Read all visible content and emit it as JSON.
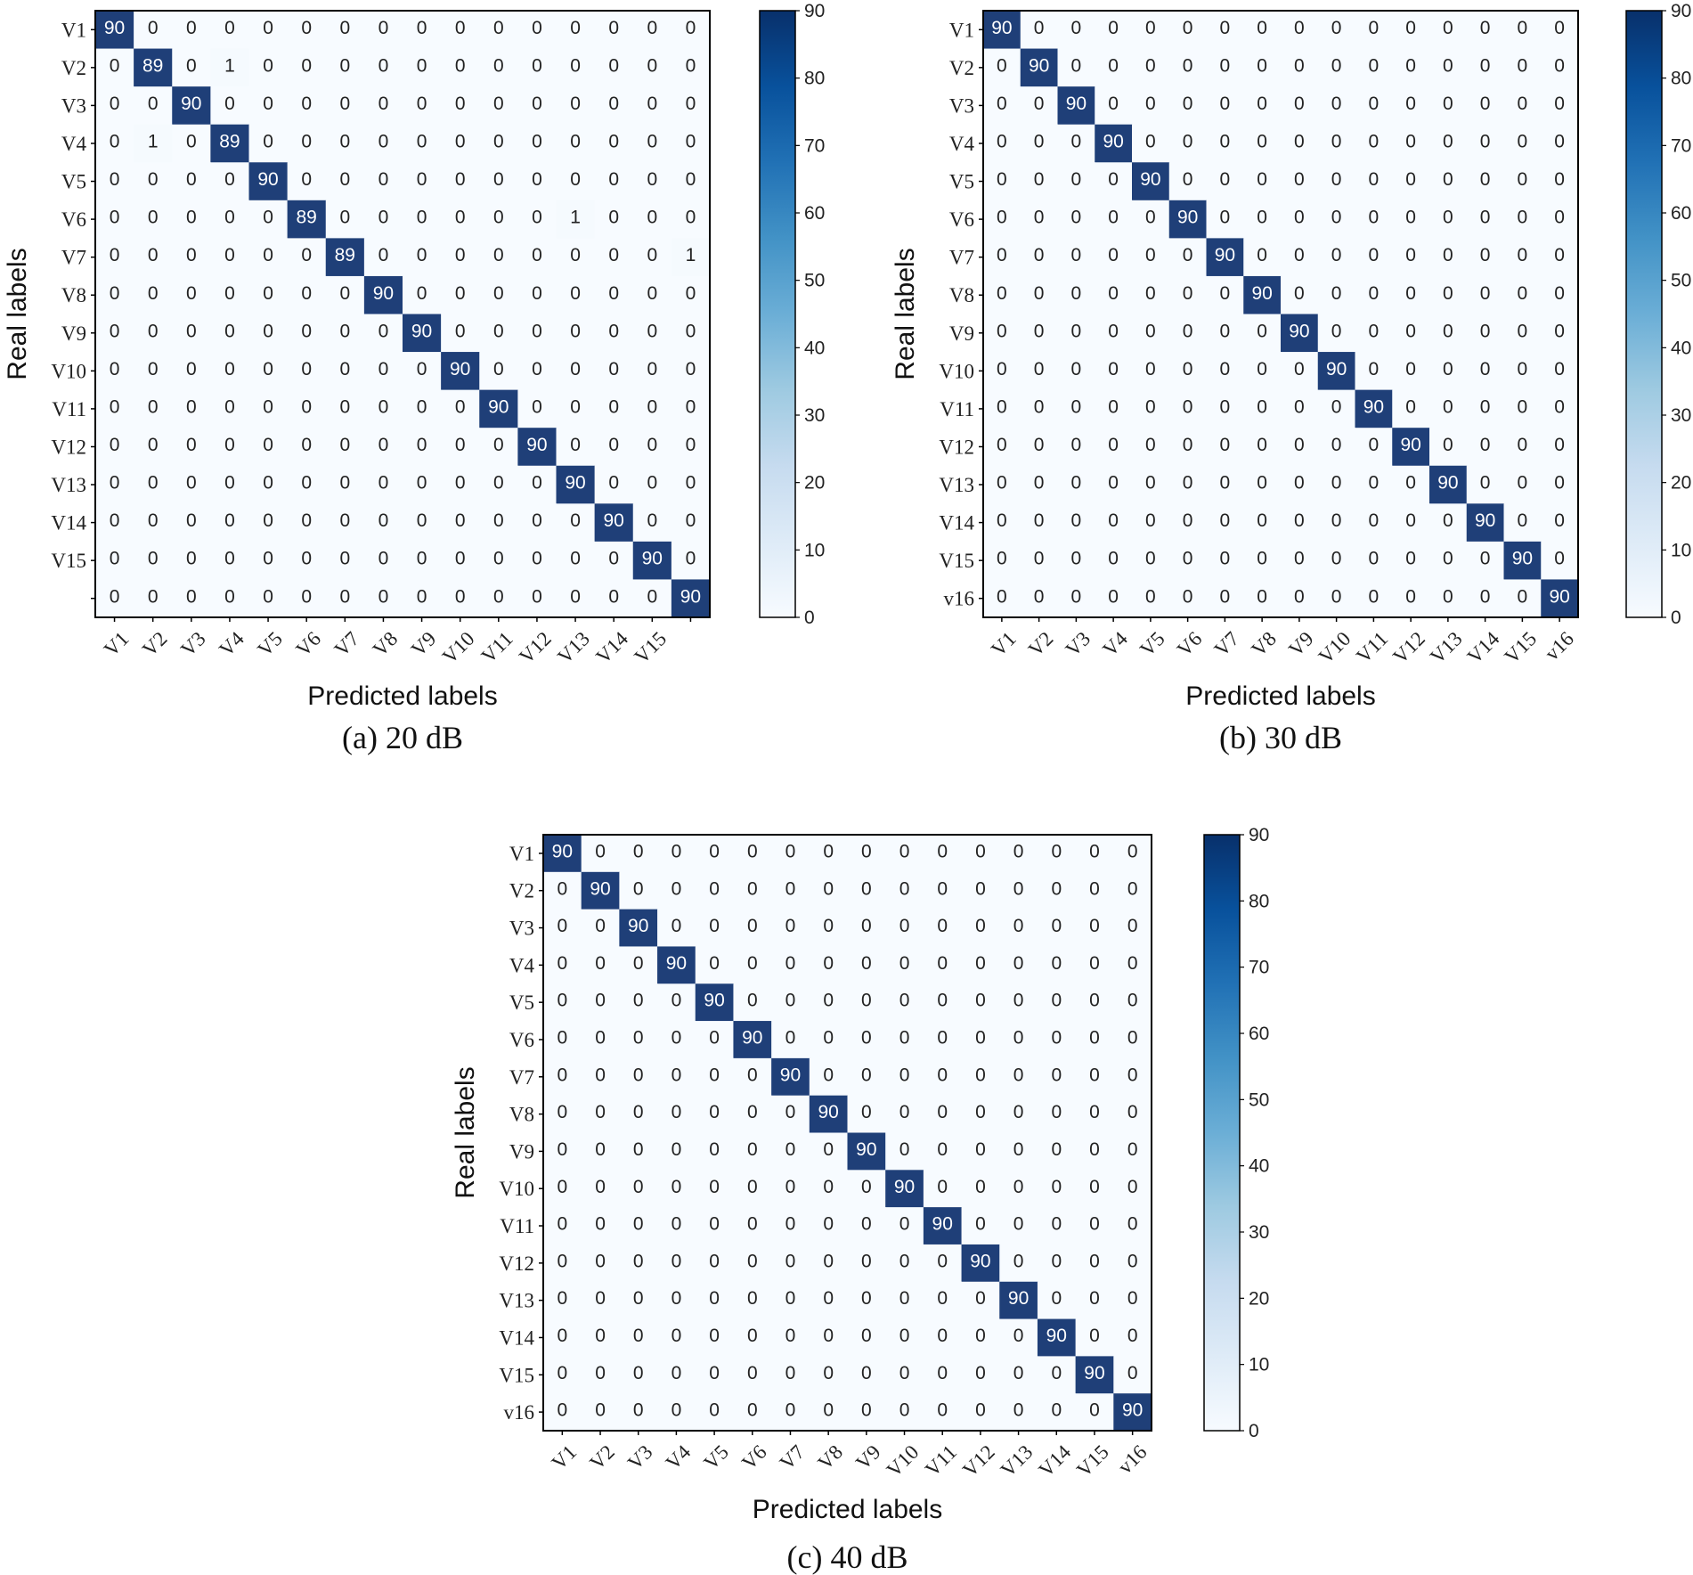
{
  "chart_data": [
    {
      "type": "heatmap",
      "caption": "(a) 20 dB",
      "xlabel": "Predicted labels",
      "ylabel": "Real labels",
      "x_ticks": [
        "V1",
        "V2",
        "V3",
        "V4",
        "V5",
        "V6",
        "V7",
        "V8",
        "V9",
        "V10",
        "V11",
        "V12",
        "V13",
        "V14",
        "V15",
        ""
      ],
      "y_ticks": [
        "V1",
        "V2",
        "V3",
        "V4",
        "V5",
        "V6",
        "V7",
        "V8",
        "V9",
        "V10",
        "V11",
        "V12",
        "V13",
        "V14",
        "V15",
        ""
      ],
      "colorbar": {
        "min": 0,
        "max": 90,
        "ticks": [
          "0",
          "10",
          "20",
          "30",
          "40",
          "50",
          "60",
          "70",
          "80",
          "90"
        ]
      },
      "matrix": [
        [
          90,
          0,
          0,
          0,
          0,
          0,
          0,
          0,
          0,
          0,
          0,
          0,
          0,
          0,
          0,
          0
        ],
        [
          0,
          89,
          0,
          1,
          0,
          0,
          0,
          0,
          0,
          0,
          0,
          0,
          0,
          0,
          0,
          0
        ],
        [
          0,
          0,
          90,
          0,
          0,
          0,
          0,
          0,
          0,
          0,
          0,
          0,
          0,
          0,
          0,
          0
        ],
        [
          0,
          1,
          0,
          89,
          0,
          0,
          0,
          0,
          0,
          0,
          0,
          0,
          0,
          0,
          0,
          0
        ],
        [
          0,
          0,
          0,
          0,
          90,
          0,
          0,
          0,
          0,
          0,
          0,
          0,
          0,
          0,
          0,
          0
        ],
        [
          0,
          0,
          0,
          0,
          0,
          89,
          0,
          0,
          0,
          0,
          0,
          0,
          1,
          0,
          0,
          0
        ],
        [
          0,
          0,
          0,
          0,
          0,
          0,
          89,
          0,
          0,
          0,
          0,
          0,
          0,
          0,
          0,
          1
        ],
        [
          0,
          0,
          0,
          0,
          0,
          0,
          0,
          90,
          0,
          0,
          0,
          0,
          0,
          0,
          0,
          0
        ],
        [
          0,
          0,
          0,
          0,
          0,
          0,
          0,
          0,
          90,
          0,
          0,
          0,
          0,
          0,
          0,
          0
        ],
        [
          0,
          0,
          0,
          0,
          0,
          0,
          0,
          0,
          0,
          90,
          0,
          0,
          0,
          0,
          0,
          0
        ],
        [
          0,
          0,
          0,
          0,
          0,
          0,
          0,
          0,
          0,
          0,
          90,
          0,
          0,
          0,
          0,
          0
        ],
        [
          0,
          0,
          0,
          0,
          0,
          0,
          0,
          0,
          0,
          0,
          0,
          90,
          0,
          0,
          0,
          0
        ],
        [
          0,
          0,
          0,
          0,
          0,
          0,
          0,
          0,
          0,
          0,
          0,
          0,
          90,
          0,
          0,
          0
        ],
        [
          0,
          0,
          0,
          0,
          0,
          0,
          0,
          0,
          0,
          0,
          0,
          0,
          0,
          90,
          0,
          0
        ],
        [
          0,
          0,
          0,
          0,
          0,
          0,
          0,
          0,
          0,
          0,
          0,
          0,
          0,
          0,
          90,
          0
        ],
        [
          0,
          0,
          0,
          0,
          0,
          0,
          0,
          0,
          0,
          0,
          0,
          0,
          0,
          0,
          0,
          90
        ]
      ]
    },
    {
      "type": "heatmap",
      "caption": "(b) 30 dB",
      "xlabel": "Predicted labels",
      "ylabel": "Real labels",
      "x_ticks": [
        "V1",
        "V2",
        "V3",
        "V4",
        "V5",
        "V6",
        "V7",
        "V8",
        "V9",
        "V10",
        "V11",
        "V12",
        "V13",
        "V14",
        "V15",
        "v16"
      ],
      "y_ticks": [
        "V1",
        "V2",
        "V3",
        "V4",
        "V5",
        "V6",
        "V7",
        "V8",
        "V9",
        "V10",
        "V11",
        "V12",
        "V13",
        "V14",
        "V15",
        "v16"
      ],
      "colorbar": {
        "min": 0,
        "max": 90,
        "ticks": [
          "0",
          "10",
          "20",
          "30",
          "40",
          "50",
          "60",
          "70",
          "80",
          "90"
        ]
      },
      "matrix": [
        [
          90,
          0,
          0,
          0,
          0,
          0,
          0,
          0,
          0,
          0,
          0,
          0,
          0,
          0,
          0,
          0
        ],
        [
          0,
          90,
          0,
          0,
          0,
          0,
          0,
          0,
          0,
          0,
          0,
          0,
          0,
          0,
          0,
          0
        ],
        [
          0,
          0,
          90,
          0,
          0,
          0,
          0,
          0,
          0,
          0,
          0,
          0,
          0,
          0,
          0,
          0
        ],
        [
          0,
          0,
          0,
          90,
          0,
          0,
          0,
          0,
          0,
          0,
          0,
          0,
          0,
          0,
          0,
          0
        ],
        [
          0,
          0,
          0,
          0,
          90,
          0,
          0,
          0,
          0,
          0,
          0,
          0,
          0,
          0,
          0,
          0
        ],
        [
          0,
          0,
          0,
          0,
          0,
          90,
          0,
          0,
          0,
          0,
          0,
          0,
          0,
          0,
          0,
          0
        ],
        [
          0,
          0,
          0,
          0,
          0,
          0,
          90,
          0,
          0,
          0,
          0,
          0,
          0,
          0,
          0,
          0
        ],
        [
          0,
          0,
          0,
          0,
          0,
          0,
          0,
          90,
          0,
          0,
          0,
          0,
          0,
          0,
          0,
          0
        ],
        [
          0,
          0,
          0,
          0,
          0,
          0,
          0,
          0,
          90,
          0,
          0,
          0,
          0,
          0,
          0,
          0
        ],
        [
          0,
          0,
          0,
          0,
          0,
          0,
          0,
          0,
          0,
          90,
          0,
          0,
          0,
          0,
          0,
          0
        ],
        [
          0,
          0,
          0,
          0,
          0,
          0,
          0,
          0,
          0,
          0,
          90,
          0,
          0,
          0,
          0,
          0
        ],
        [
          0,
          0,
          0,
          0,
          0,
          0,
          0,
          0,
          0,
          0,
          0,
          90,
          0,
          0,
          0,
          0
        ],
        [
          0,
          0,
          0,
          0,
          0,
          0,
          0,
          0,
          0,
          0,
          0,
          0,
          90,
          0,
          0,
          0
        ],
        [
          0,
          0,
          0,
          0,
          0,
          0,
          0,
          0,
          0,
          0,
          0,
          0,
          0,
          90,
          0,
          0
        ],
        [
          0,
          0,
          0,
          0,
          0,
          0,
          0,
          0,
          0,
          0,
          0,
          0,
          0,
          0,
          90,
          0
        ],
        [
          0,
          0,
          0,
          0,
          0,
          0,
          0,
          0,
          0,
          0,
          0,
          0,
          0,
          0,
          0,
          90
        ]
      ]
    },
    {
      "type": "heatmap",
      "caption": "(c) 40 dB",
      "xlabel": "Predicted labels",
      "ylabel": "Real labels",
      "x_ticks": [
        "V1",
        "V2",
        "V3",
        "V4",
        "V5",
        "V6",
        "V7",
        "V8",
        "V9",
        "V10",
        "V11",
        "V12",
        "V13",
        "V14",
        "V15",
        "v16"
      ],
      "y_ticks": [
        "V1",
        "V2",
        "V3",
        "V4",
        "V5",
        "V6",
        "V7",
        "V8",
        "V9",
        "V10",
        "V11",
        "V12",
        "V13",
        "V14",
        "V15",
        "v16"
      ],
      "colorbar": {
        "min": 0,
        "max": 90,
        "ticks": [
          "0",
          "10",
          "20",
          "30",
          "40",
          "50",
          "60",
          "70",
          "80",
          "90"
        ]
      },
      "matrix": [
        [
          90,
          0,
          0,
          0,
          0,
          0,
          0,
          0,
          0,
          0,
          0,
          0,
          0,
          0,
          0,
          0
        ],
        [
          0,
          90,
          0,
          0,
          0,
          0,
          0,
          0,
          0,
          0,
          0,
          0,
          0,
          0,
          0,
          0
        ],
        [
          0,
          0,
          90,
          0,
          0,
          0,
          0,
          0,
          0,
          0,
          0,
          0,
          0,
          0,
          0,
          0
        ],
        [
          0,
          0,
          0,
          90,
          0,
          0,
          0,
          0,
          0,
          0,
          0,
          0,
          0,
          0,
          0,
          0
        ],
        [
          0,
          0,
          0,
          0,
          90,
          0,
          0,
          0,
          0,
          0,
          0,
          0,
          0,
          0,
          0,
          0
        ],
        [
          0,
          0,
          0,
          0,
          0,
          90,
          0,
          0,
          0,
          0,
          0,
          0,
          0,
          0,
          0,
          0
        ],
        [
          0,
          0,
          0,
          0,
          0,
          0,
          90,
          0,
          0,
          0,
          0,
          0,
          0,
          0,
          0,
          0
        ],
        [
          0,
          0,
          0,
          0,
          0,
          0,
          0,
          90,
          0,
          0,
          0,
          0,
          0,
          0,
          0,
          0
        ],
        [
          0,
          0,
          0,
          0,
          0,
          0,
          0,
          0,
          90,
          0,
          0,
          0,
          0,
          0,
          0,
          0
        ],
        [
          0,
          0,
          0,
          0,
          0,
          0,
          0,
          0,
          0,
          90,
          0,
          0,
          0,
          0,
          0,
          0
        ],
        [
          0,
          0,
          0,
          0,
          0,
          0,
          0,
          0,
          0,
          0,
          90,
          0,
          0,
          0,
          0,
          0
        ],
        [
          0,
          0,
          0,
          0,
          0,
          0,
          0,
          0,
          0,
          0,
          0,
          90,
          0,
          0,
          0,
          0
        ],
        [
          0,
          0,
          0,
          0,
          0,
          0,
          0,
          0,
          0,
          0,
          0,
          0,
          90,
          0,
          0,
          0
        ],
        [
          0,
          0,
          0,
          0,
          0,
          0,
          0,
          0,
          0,
          0,
          0,
          0,
          0,
          90,
          0,
          0
        ],
        [
          0,
          0,
          0,
          0,
          0,
          0,
          0,
          0,
          0,
          0,
          0,
          0,
          0,
          0,
          90,
          0
        ],
        [
          0,
          0,
          0,
          0,
          0,
          0,
          0,
          0,
          0,
          0,
          0,
          0,
          0,
          0,
          0,
          90
        ]
      ]
    }
  ],
  "colors": {
    "cmap": [
      "#f7fbff",
      "#deebf7",
      "#c6dbef",
      "#9ecae1",
      "#6baed6",
      "#4292c6",
      "#2171b5",
      "#08519c",
      "#08306b"
    ],
    "diagonal": "#1f3f78",
    "frame": "#000000"
  }
}
